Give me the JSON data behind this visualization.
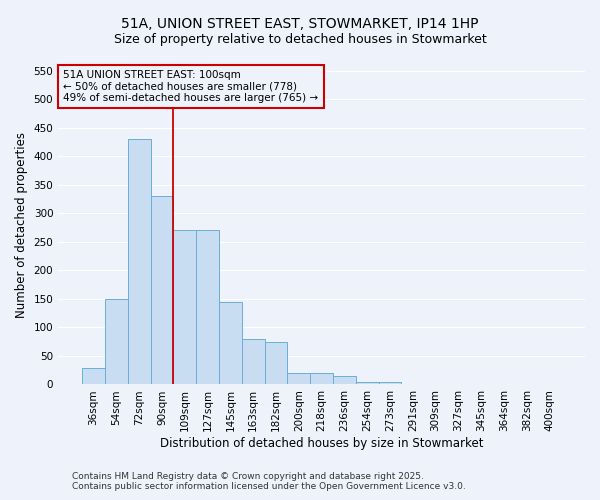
{
  "title_line1": "51A, UNION STREET EAST, STOWMARKET, IP14 1HP",
  "title_line2": "Size of property relative to detached houses in Stowmarket",
  "xlabel": "Distribution of detached houses by size in Stowmarket",
  "ylabel": "Number of detached properties",
  "categories": [
    "36sqm",
    "54sqm",
    "72sqm",
    "90sqm",
    "109sqm",
    "127sqm",
    "145sqm",
    "163sqm",
    "182sqm",
    "200sqm",
    "218sqm",
    "236sqm",
    "254sqm",
    "273sqm",
    "291sqm",
    "309sqm",
    "327sqm",
    "345sqm",
    "364sqm",
    "382sqm",
    "400sqm"
  ],
  "values": [
    28,
    150,
    430,
    330,
    270,
    270,
    145,
    80,
    75,
    20,
    20,
    15,
    5,
    5,
    1,
    0,
    1,
    0,
    0,
    1,
    0
  ],
  "bar_color": "#c9ddf2",
  "bar_edgecolor": "#6baed6",
  "vline_color": "#cc0000",
  "annotation_text_line1": "51A UNION STREET EAST: 100sqm",
  "annotation_text_line2": "← 50% of detached houses are smaller (778)",
  "annotation_text_line3": "49% of semi-detached houses are larger (765) →",
  "annotation_box_edgecolor": "#cc0000",
  "ylim": [
    0,
    560
  ],
  "yticks": [
    0,
    50,
    100,
    150,
    200,
    250,
    300,
    350,
    400,
    450,
    500,
    550
  ],
  "footer_line1": "Contains HM Land Registry data © Crown copyright and database right 2025.",
  "footer_line2": "Contains public sector information licensed under the Open Government Licence v3.0.",
  "background_color": "#edf2fb",
  "grid_color": "#ffffff",
  "title_fontsize": 10,
  "subtitle_fontsize": 9,
  "axis_label_fontsize": 8.5,
  "tick_fontsize": 7.5,
  "annotation_fontsize": 7.5,
  "footer_fontsize": 6.5
}
